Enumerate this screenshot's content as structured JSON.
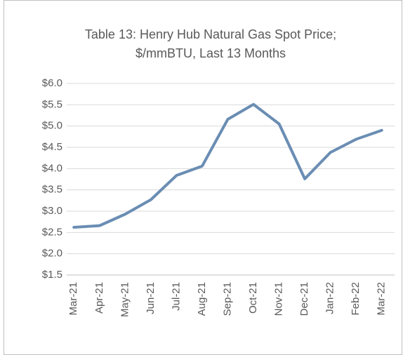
{
  "chart_data": {
    "type": "line",
    "title": [
      "Table 13: Henry Hub Natural Gas Spot Price;",
      "$/mmBTU, Last 13 Months"
    ],
    "categories": [
      "Mar-21",
      "Apr-21",
      "May-21",
      "Jun-21",
      "Jul-21",
      "Aug-21",
      "Sep-21",
      "Oct-21",
      "Nov-21",
      "Dec-21",
      "Jan-22",
      "Feb-22",
      "Mar-22"
    ],
    "series": [
      {
        "color": "#6a8db3",
        "values": [
          2.62,
          2.66,
          2.93,
          3.27,
          3.84,
          4.06,
          5.16,
          5.51,
          5.05,
          3.76,
          4.38,
          4.69,
          4.9
        ]
      }
    ],
    "ylim": [
      1.5,
      6.0
    ],
    "yticks": [
      {
        "value": 1.5,
        "label": "$1.5"
      },
      {
        "value": 2.0,
        "label": "$2.0"
      },
      {
        "value": 2.5,
        "label": "$2.5"
      },
      {
        "value": 3.0,
        "label": "$3.0"
      },
      {
        "value": 3.5,
        "label": "$3.5"
      },
      {
        "value": 4.0,
        "label": "$4.0"
      },
      {
        "value": 4.5,
        "label": "$4.5"
      },
      {
        "value": 5.0,
        "label": "$5.0"
      },
      {
        "value": 5.5,
        "label": "$5.5"
      },
      {
        "value": 6.0,
        "label": "$6.0"
      }
    ],
    "grid": true
  }
}
